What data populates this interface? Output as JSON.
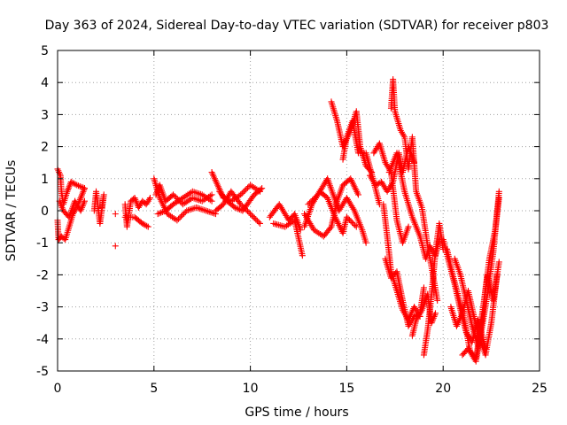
{
  "chart_data": {
    "type": "scatter",
    "title": "Day 363 of 2024, Sidereal Day-to-day VTEC variation (SDTVAR) for receiver p803",
    "xlabel": "GPS time / hours",
    "ylabel": "SDTVAR / TECUs",
    "xlim": [
      0,
      25
    ],
    "ylim": [
      -5,
      5
    ],
    "xticks": [
      "0",
      "5",
      "10",
      "15",
      "20",
      "25"
    ],
    "yticks": [
      "5",
      "4",
      "3",
      "2",
      "1",
      "0",
      "-1",
      "-2",
      "-3",
      "-4",
      "-5"
    ],
    "grid": true,
    "marker": "plus",
    "series": [
      {
        "name": "SDTVAR",
        "color": "#ff0000",
        "tracks": [
          [
            [
              0.0,
              1.3
            ],
            [
              0.15,
              1.1
            ],
            [
              0.2,
              0.6
            ],
            [
              0.3,
              0.2
            ],
            [
              0.5,
              0.6
            ],
            [
              0.7,
              0.9
            ],
            [
              1.0,
              0.8
            ],
            [
              1.4,
              0.7
            ]
          ],
          [
            [
              0.0,
              -0.3
            ],
            [
              0.05,
              -0.9
            ],
            [
              0.2,
              -0.8
            ],
            [
              0.4,
              -0.9
            ],
            [
              0.6,
              -0.5
            ],
            [
              0.8,
              -0.1
            ],
            [
              1.0,
              0.1
            ],
            [
              1.2,
              0.4
            ],
            [
              1.4,
              0.7
            ]
          ],
          [
            [
              0.1,
              0.3
            ],
            [
              0.3,
              0.0
            ],
            [
              0.6,
              -0.2
            ],
            [
              0.9,
              0.3
            ],
            [
              1.2,
              0.0
            ],
            [
              1.4,
              0.3
            ]
          ],
          [
            [
              1.9,
              0.0
            ],
            [
              2.0,
              0.6
            ],
            [
              2.2,
              -0.4
            ],
            [
              2.4,
              0.5
            ],
            [
              2.3,
              0.1
            ]
          ],
          [
            [
              3.0,
              -1.1
            ]
          ],
          [
            [
              3.0,
              -0.1
            ]
          ],
          [
            [
              3.5,
              0.2
            ],
            [
              3.6,
              -0.5
            ],
            [
              3.8,
              0.3
            ],
            [
              4.0,
              0.4
            ],
            [
              4.2,
              0.1
            ],
            [
              4.4,
              0.3
            ],
            [
              4.6,
              0.2
            ],
            [
              4.8,
              0.4
            ]
          ],
          [
            [
              3.5,
              -0.2
            ],
            [
              4.0,
              -0.2
            ],
            [
              4.4,
              -0.4
            ],
            [
              4.7,
              -0.5
            ]
          ],
          [
            [
              5.1,
              0.5
            ],
            [
              5.3,
              0.8
            ],
            [
              5.6,
              0.3
            ],
            [
              6.0,
              0.5
            ],
            [
              6.5,
              0.2
            ],
            [
              7.0,
              0.4
            ],
            [
              7.5,
              0.3
            ],
            [
              8.0,
              0.5
            ]
          ],
          [
            [
              5.2,
              -0.1
            ],
            [
              5.6,
              0.0
            ],
            [
              6.0,
              0.2
            ],
            [
              6.5,
              0.4
            ],
            [
              7.0,
              0.6
            ],
            [
              7.5,
              0.5
            ],
            [
              8.0,
              0.3
            ]
          ],
          [
            [
              5.0,
              1.0
            ],
            [
              5.3,
              0.4
            ],
            [
              5.7,
              -0.1
            ],
            [
              6.2,
              -0.3
            ],
            [
              6.7,
              0.0
            ],
            [
              7.2,
              0.1
            ],
            [
              7.7,
              0.0
            ],
            [
              8.2,
              -0.1
            ]
          ],
          [
            [
              8.0,
              1.2
            ],
            [
              8.3,
              0.8
            ],
            [
              8.6,
              0.4
            ],
            [
              9.0,
              0.3
            ],
            [
              9.5,
              0.5
            ],
            [
              10.0,
              0.8
            ],
            [
              10.5,
              0.6
            ]
          ],
          [
            [
              8.2,
              0.0
            ],
            [
              8.6,
              0.2
            ],
            [
              9.0,
              0.6
            ],
            [
              9.5,
              0.2
            ],
            [
              10.0,
              -0.1
            ],
            [
              10.5,
              -0.4
            ]
          ],
          [
            [
              8.4,
              0.6
            ],
            [
              8.8,
              0.3
            ],
            [
              9.2,
              0.1
            ],
            [
              9.6,
              0.0
            ],
            [
              10.2,
              0.5
            ],
            [
              10.6,
              0.7
            ]
          ],
          [
            [
              11.0,
              -0.2
            ],
            [
              11.5,
              0.2
            ],
            [
              12.0,
              -0.3
            ],
            [
              12.3,
              -0.1
            ],
            [
              12.6,
              -0.6
            ]
          ],
          [
            [
              11.2,
              -0.4
            ],
            [
              11.8,
              -0.5
            ],
            [
              12.3,
              -0.3
            ],
            [
              12.7,
              -1.4
            ]
          ],
          [
            [
              12.8,
              -0.5
            ],
            [
              13.2,
              0.2
            ],
            [
              13.6,
              0.6
            ],
            [
              14.0,
              0.4
            ],
            [
              14.4,
              -0.2
            ],
            [
              14.8,
              -0.7
            ],
            [
              15.0,
              -0.2
            ],
            [
              15.5,
              -0.5
            ]
          ],
          [
            [
              12.8,
              -0.1
            ],
            [
              13.3,
              -0.6
            ],
            [
              13.8,
              -0.8
            ],
            [
              14.2,
              -0.5
            ],
            [
              14.5,
              0.3
            ],
            [
              14.8,
              0.8
            ],
            [
              15.2,
              1.0
            ],
            [
              15.6,
              0.5
            ]
          ],
          [
            [
              13.0,
              0.2
            ],
            [
              13.5,
              0.5
            ],
            [
              14.0,
              1.0
            ],
            [
              14.3,
              0.5
            ],
            [
              14.6,
              0.0
            ],
            [
              15.0,
              0.4
            ],
            [
              15.4,
              0.0
            ],
            [
              15.8,
              -0.6
            ],
            [
              16.0,
              -1.0
            ]
          ],
          [
            [
              14.2,
              3.4
            ],
            [
              14.5,
              2.8
            ],
            [
              14.8,
              2.0
            ],
            [
              15.2,
              2.5
            ],
            [
              15.5,
              3.1
            ],
            [
              15.7,
              2.0
            ],
            [
              16.0,
              1.4
            ],
            [
              16.3,
              1.2
            ]
          ],
          [
            [
              14.8,
              1.6
            ],
            [
              15.0,
              2.3
            ],
            [
              15.3,
              2.8
            ],
            [
              15.6,
              1.8
            ],
            [
              16.0,
              1.8
            ],
            [
              16.4,
              0.9
            ],
            [
              16.7,
              0.2
            ]
          ],
          [
            [
              16.2,
              1.1
            ],
            [
              16.5,
              0.8
            ],
            [
              16.8,
              0.9
            ],
            [
              17.1,
              0.6
            ],
            [
              17.4,
              0.9
            ],
            [
              17.7,
              1.8
            ],
            [
              17.9,
              1.2
            ],
            [
              18.2,
              2.0
            ],
            [
              18.5,
              1.5
            ]
          ],
          [
            [
              16.4,
              1.8
            ],
            [
              16.7,
              2.1
            ],
            [
              17.0,
              1.5
            ],
            [
              17.3,
              1.2
            ],
            [
              17.6,
              -0.3
            ],
            [
              17.9,
              -1.0
            ],
            [
              18.2,
              -0.5
            ]
          ],
          [
            [
              16.9,
              0.2
            ],
            [
              17.1,
              -0.8
            ],
            [
              17.3,
              -1.9
            ],
            [
              17.6,
              -2.5
            ],
            [
              17.9,
              -3.1
            ],
            [
              18.2,
              -3.4
            ],
            [
              18.5,
              -3.0
            ],
            [
              18.8,
              -3.3
            ]
          ],
          [
            [
              17.0,
              -1.5
            ],
            [
              17.3,
              -2.1
            ],
            [
              17.6,
              -1.9
            ],
            [
              17.9,
              -2.8
            ],
            [
              18.2,
              -3.6
            ],
            [
              18.5,
              -3.3
            ],
            [
              18.8,
              -3.2
            ],
            [
              19.0,
              -2.4
            ]
          ],
          [
            [
              17.3,
              3.2
            ],
            [
              17.4,
              4.1
            ],
            [
              17.5,
              3.1
            ],
            [
              17.8,
              2.5
            ],
            [
              18.0,
              2.3
            ],
            [
              18.2,
              1.3
            ],
            [
              18.4,
              2.3
            ],
            [
              18.6,
              0.6
            ],
            [
              18.9,
              0.1
            ],
            [
              19.2,
              -1.1
            ],
            [
              19.5,
              -2.1
            ],
            [
              19.7,
              -2.8
            ]
          ],
          [
            [
              17.2,
              1.2
            ],
            [
              17.6,
              1.8
            ],
            [
              18.0,
              0.6
            ],
            [
              18.4,
              -0.2
            ],
            [
              18.8,
              -0.8
            ],
            [
              19.1,
              -1.5
            ],
            [
              19.3,
              -1.1
            ],
            [
              19.6,
              -1.4
            ],
            [
              19.8,
              -0.9
            ]
          ],
          [
            [
              18.4,
              -3.9
            ],
            [
              18.6,
              -3.4
            ],
            [
              18.9,
              -3.1
            ],
            [
              19.2,
              -2.6
            ],
            [
              19.4,
              -3.5
            ],
            [
              19.6,
              -3.2
            ]
          ],
          [
            [
              19.0,
              -4.5
            ],
            [
              19.2,
              -3.7
            ],
            [
              19.4,
              -2.6
            ],
            [
              19.6,
              -1.3
            ],
            [
              19.8,
              -0.4
            ],
            [
              20.0,
              -1.2
            ]
          ],
          [
            [
              20.0,
              -0.9
            ],
            [
              20.3,
              -1.6
            ],
            [
              20.6,
              -2.3
            ],
            [
              20.9,
              -3.1
            ],
            [
              21.2,
              -3.8
            ],
            [
              21.5,
              -4.1
            ],
            [
              21.8,
              -3.4
            ],
            [
              22.2,
              -4.3
            ]
          ],
          [
            [
              20.2,
              -1.2
            ],
            [
              20.5,
              -2.0
            ],
            [
              20.8,
              -2.7
            ],
            [
              21.1,
              -3.4
            ],
            [
              21.4,
              -4.4
            ],
            [
              21.7,
              -4.7
            ],
            [
              22.0,
              -3.7
            ],
            [
              22.3,
              -2.6
            ],
            [
              22.6,
              -1.3
            ],
            [
              22.9,
              0.6
            ]
          ],
          [
            [
              20.4,
              -3.0
            ],
            [
              20.7,
              -3.6
            ],
            [
              21.0,
              -3.2
            ],
            [
              21.3,
              -2.5
            ],
            [
              21.6,
              -3.3
            ],
            [
              21.9,
              -4.0
            ],
            [
              22.2,
              -4.5
            ],
            [
              22.5,
              -3.5
            ],
            [
              22.8,
              -2.0
            ]
          ],
          [
            [
              20.6,
              -1.5
            ],
            [
              20.9,
              -2.0
            ],
            [
              21.2,
              -2.8
            ],
            [
              21.5,
              -3.6
            ],
            [
              21.8,
              -4.2
            ],
            [
              22.1,
              -2.9
            ],
            [
              22.4,
              -1.5
            ],
            [
              22.7,
              -0.6
            ],
            [
              22.9,
              0.4
            ]
          ],
          [
            [
              21.0,
              -4.5
            ],
            [
              21.3,
              -4.3
            ],
            [
              21.7,
              -4.6
            ],
            [
              22.0,
              -3.5
            ],
            [
              22.3,
              -2.0
            ],
            [
              22.6,
              -2.8
            ],
            [
              22.9,
              -1.6
            ]
          ]
        ]
      }
    ]
  }
}
